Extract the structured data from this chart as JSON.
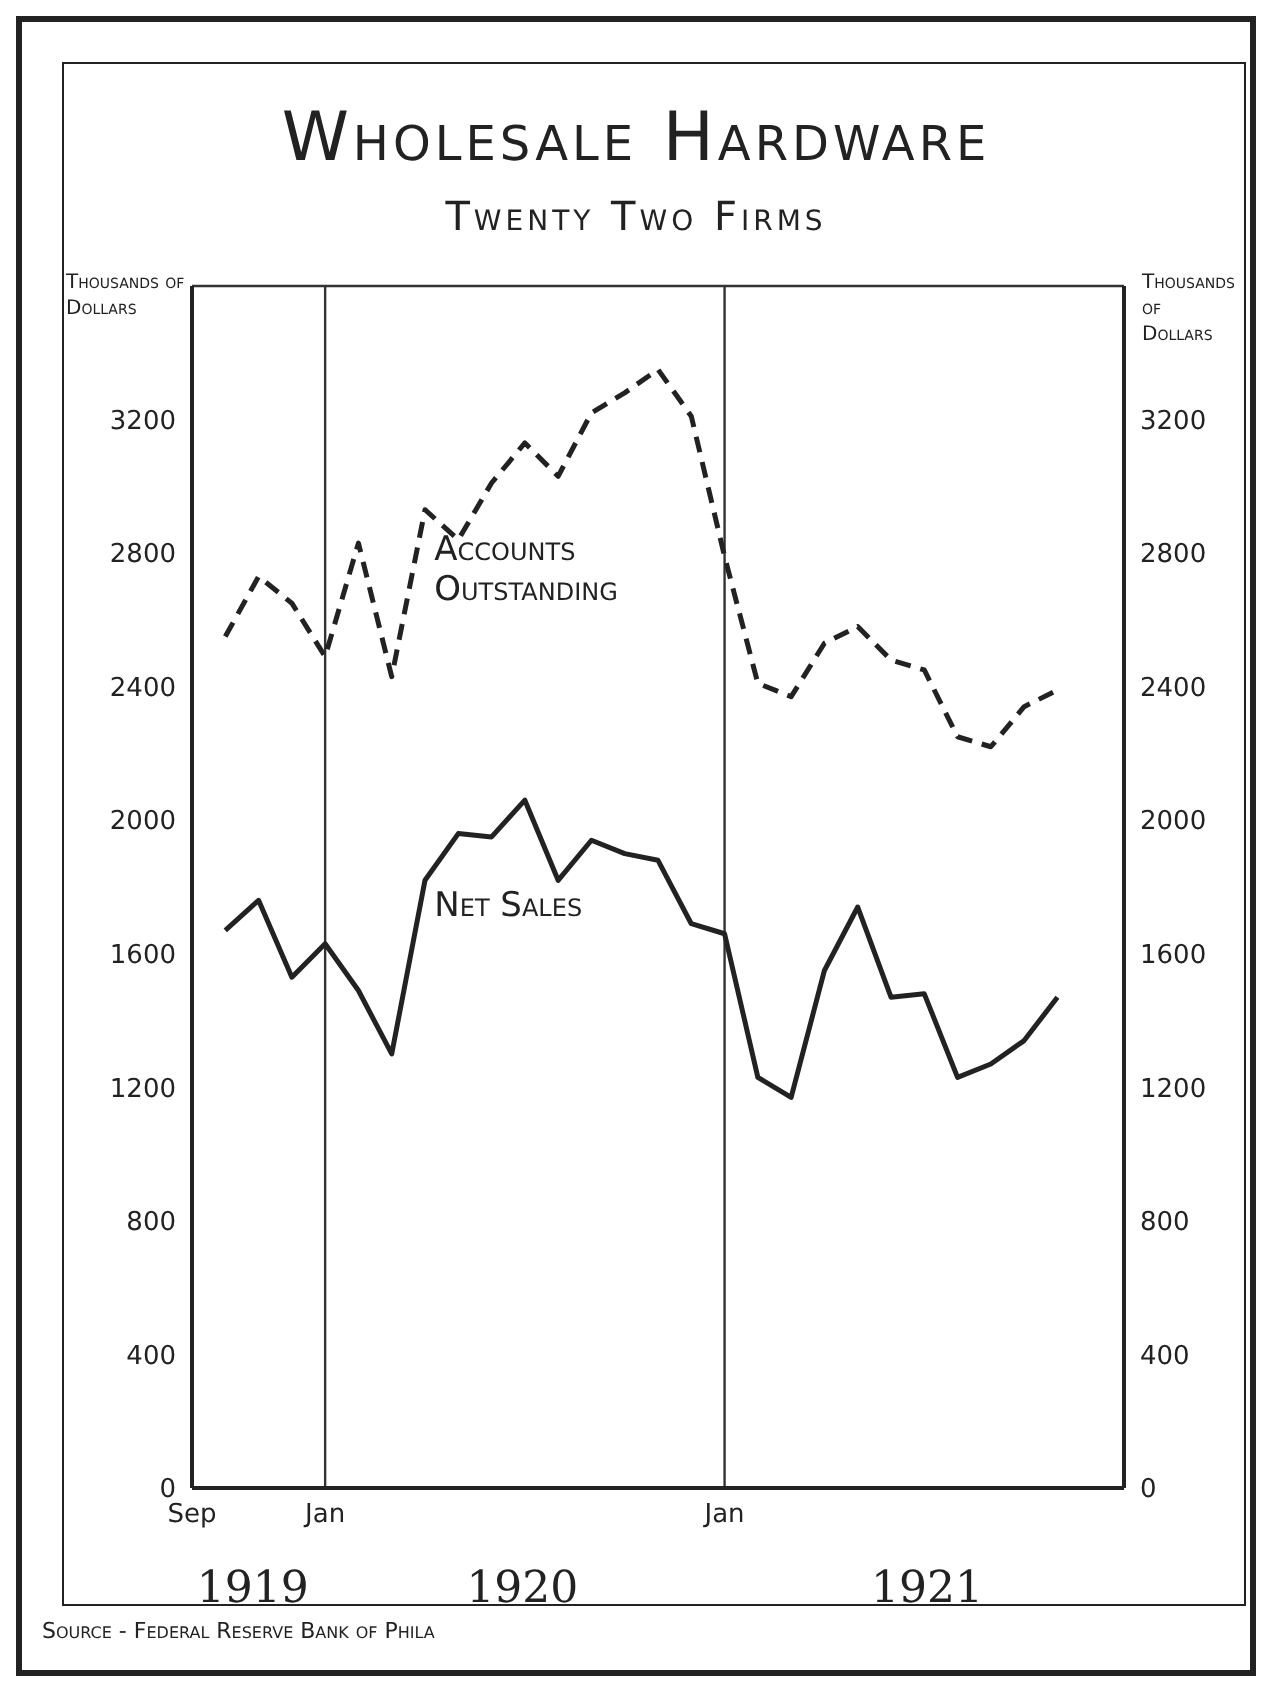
{
  "chart_data": {
    "type": "line",
    "title": "Wholesale Hardware",
    "subtitle": "Twenty Two Firms",
    "ylabel": "Thousands of Dollars",
    "y2label": "Thousands of Dollars",
    "x": [
      "1919-10",
      "1919-11",
      "1919-12",
      "1920-01",
      "1920-02",
      "1920-03",
      "1920-04",
      "1920-05",
      "1920-06",
      "1920-07",
      "1920-08",
      "1920-09",
      "1920-10",
      "1920-11",
      "1920-12",
      "1921-01",
      "1921-02",
      "1921-03",
      "1921-04",
      "1921-05",
      "1921-06",
      "1921-07",
      "1921-08",
      "1921-09",
      "1921-10",
      "1921-11"
    ],
    "series": [
      {
        "name": "Accounts Outstanding",
        "color": "#222222",
        "line_style": "dashed",
        "values": [
          2550,
          2730,
          2650,
          2490,
          2830,
          2430,
          2930,
          2840,
          3010,
          3130,
          3030,
          3220,
          3280,
          3350,
          3210,
          2790,
          2410,
          2370,
          2530,
          2580,
          2480,
          2450,
          2250,
          2220,
          2340,
          2390
        ]
      },
      {
        "name": "Net Sales",
        "color": "#222222",
        "line_style": "solid",
        "values": [
          1670,
          1760,
          1530,
          1630,
          1490,
          1300,
          1820,
          1960,
          1950,
          2060,
          1820,
          1940,
          1900,
          1880,
          1690,
          1660,
          1230,
          1170,
          1550,
          1740,
          1470,
          1480,
          1230,
          1270,
          1340,
          1470
        ]
      }
    ],
    "xlim": [
      "1919-09",
      "1922-01"
    ],
    "xticks": [
      {
        "value": "1919-09",
        "label": "Sep"
      },
      {
        "value": "1920-01",
        "label": "Jan"
      },
      {
        "value": "1921-01",
        "label": "Jan"
      }
    ],
    "ylim": [
      0,
      3600
    ],
    "yticks": [
      0,
      400,
      800,
      1200,
      1600,
      2000,
      2400,
      2800,
      3200
    ],
    "y2lim": [
      0,
      3600
    ],
    "y2ticks": [
      0,
      400,
      800,
      1200,
      1600,
      2000,
      2400,
      2800,
      3200
    ],
    "grid": true,
    "marker": "none",
    "legend": false,
    "annotations": [
      "1919",
      "1920",
      "1921",
      "Source - Federal Reserve Bank of Phila"
    ]
  }
}
